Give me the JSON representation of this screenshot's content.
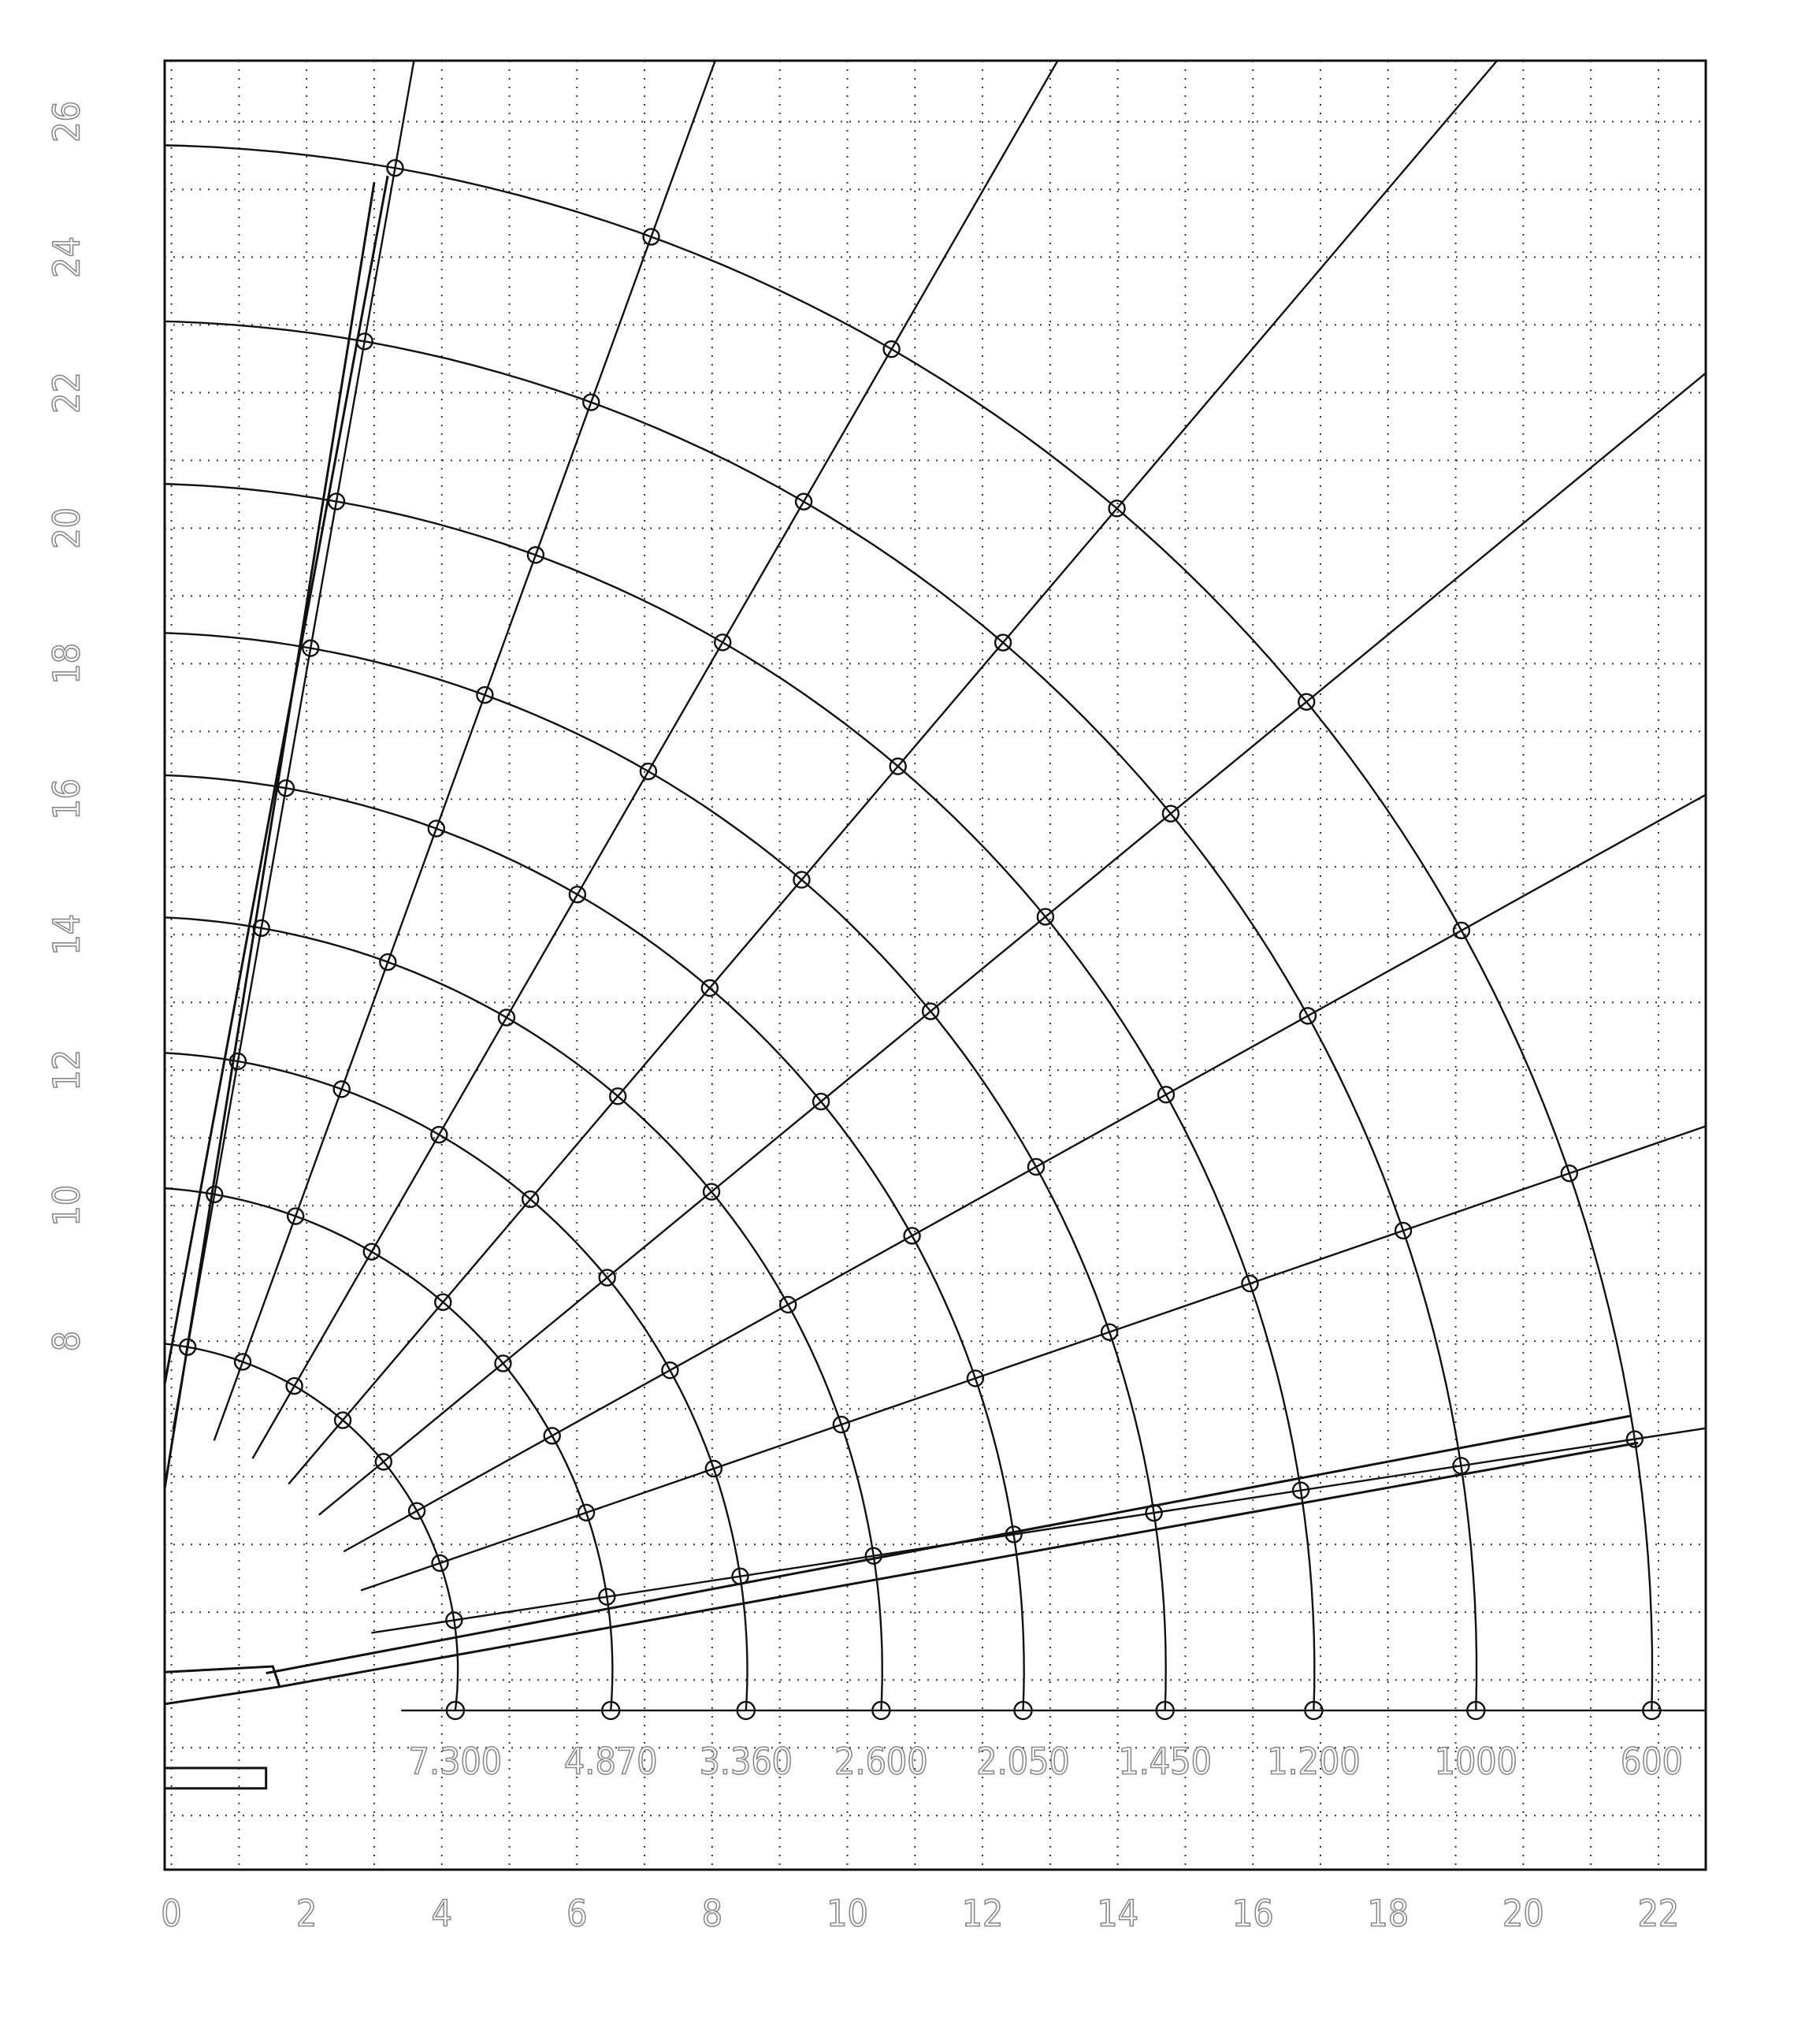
{
  "chart_data": {
    "type": "load_chart",
    "xlim": [
      -0.1,
      22.7
    ],
    "ylim": [
      0.2,
      26.9
    ],
    "xticks": [
      0,
      2,
      4,
      6,
      8,
      10,
      12,
      14,
      16,
      18,
      20,
      22
    ],
    "yticks": [
      8,
      10,
      12,
      14,
      16,
      18,
      20,
      22,
      24,
      26
    ],
    "grid": true,
    "load_points": {
      "x": [
        4.2,
        6.5,
        8.5,
        10.5,
        12.6,
        14.7,
        16.9,
        19.3,
        21.9
      ],
      "y": [
        2.55,
        2.55,
        2.55,
        2.55,
        2.55,
        2.55,
        2.55,
        2.55,
        2.55
      ],
      "labels": [
        "7.300",
        "4.870",
        "3.360",
        "2.600",
        "2.050",
        "1.450",
        "1.200",
        "1000",
        "600"
      ]
    }
  }
}
